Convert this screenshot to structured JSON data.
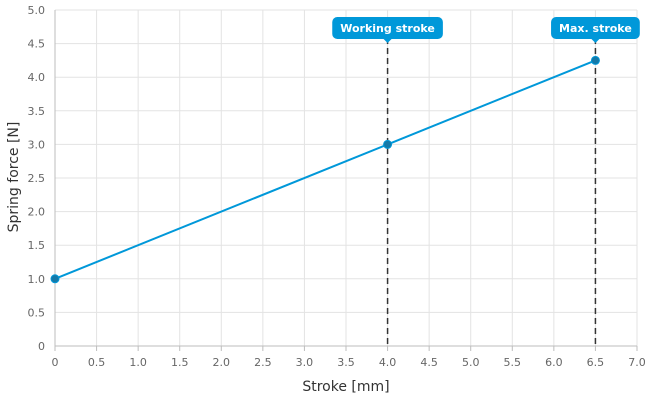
{
  "chart_data": {
    "type": "line",
    "xlabel": "Stroke [mm]",
    "ylabel": "Spring force [N]",
    "xlim": [
      0,
      7.0
    ],
    "ylim": [
      0,
      5.0
    ],
    "x_ticks": [
      "0",
      "0.5",
      "1.0",
      "1.5",
      "2.0",
      "2.5",
      "3.0",
      "3.5",
      "4.0",
      "4.5",
      "5.0",
      "5.5",
      "6.0",
      "6.5",
      "7.0"
    ],
    "y_ticks": [
      "0",
      "0.5",
      "1.0",
      "1.5",
      "2.0",
      "2.5",
      "3.0",
      "3.5",
      "4.0",
      "4.5",
      "5.0"
    ],
    "grid": true,
    "series": [
      {
        "color": "#0098d9",
        "points": [
          {
            "x": 0,
            "y": 1.0
          },
          {
            "x": 4.0,
            "y": 3.0
          },
          {
            "x": 6.5,
            "y": 4.25
          }
        ]
      }
    ],
    "annotations": [
      {
        "label": "Working stroke",
        "x": 4.0
      },
      {
        "label": "Max. stroke",
        "x": 6.5
      }
    ]
  }
}
